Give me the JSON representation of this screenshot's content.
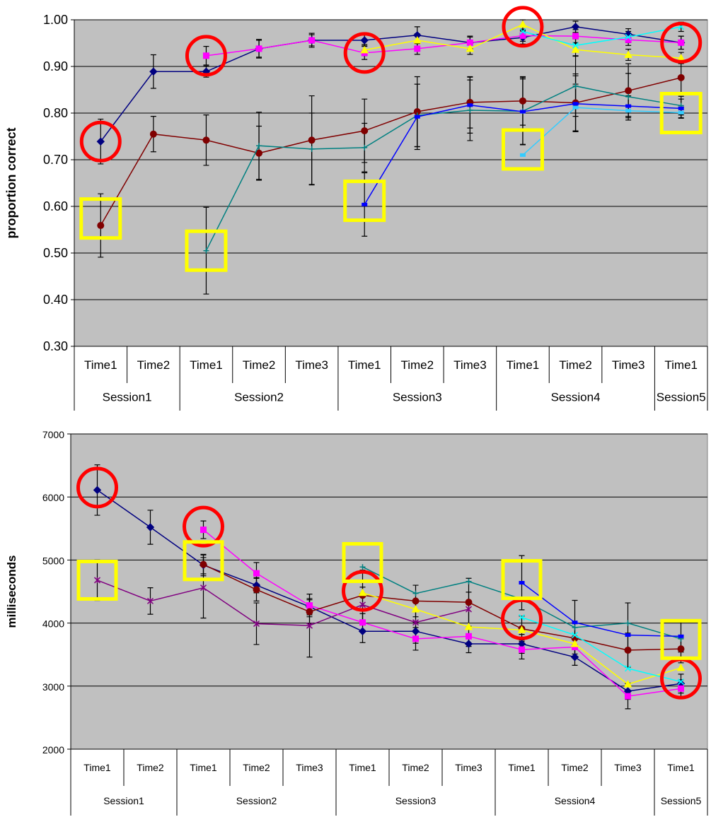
{
  "chart_data": [
    {
      "type": "line",
      "title": "",
      "xlabel": "",
      "ylabel": "proportion correct",
      "ylim": [
        0.3,
        1.0
      ],
      "yticks": [
        "0.30",
        "0.40",
        "0.50",
        "0.60",
        "0.70",
        "0.80",
        "0.90",
        "1.00"
      ],
      "grid": true,
      "legend": "none",
      "plot_bg": "#c0c0c0",
      "categories": [
        "Time1",
        "Time2",
        "Time1",
        "Time2",
        "Time3",
        "Time1",
        "Time2",
        "Time3",
        "Time1",
        "Time2",
        "Time3",
        "Time1"
      ],
      "groups": [
        {
          "label": "Session1",
          "span": 2
        },
        {
          "label": "Session2",
          "span": 3
        },
        {
          "label": "Session3",
          "span": 3
        },
        {
          "label": "Session4",
          "span": 3
        },
        {
          "label": "Session5",
          "span": 1
        }
      ],
      "series": [
        {
          "color": "#000080",
          "marker": "diamond",
          "values": [
            0.739,
            0.889,
            0.889,
            0.938,
            0.956,
            0.956,
            0.967,
            0.951,
            0.962,
            0.985,
            0.969,
            0.951
          ],
          "error": [
            0.048,
            0.036,
            0.012,
            0.018,
            0.015,
            0.012,
            0.018,
            0.012,
            0.014,
            0.012,
            0.012,
            0.014
          ]
        },
        {
          "color": "#800000",
          "marker": "circle",
          "values": [
            0.559,
            0.755,
            0.742,
            0.714,
            0.742,
            0.762,
            0.803,
            0.823,
            0.826,
            0.822,
            0.848,
            0.876
          ],
          "error": [
            0.068,
            0.038,
            0.054,
            0.058,
            0.095,
            0.068,
            0.075,
            0.055,
            0.052,
            0.062,
            0.058,
            0.035
          ]
        },
        {
          "color": "#008080",
          "marker": "plus",
          "values": [
            null,
            null,
            0.505,
            0.73,
            0.723,
            0.726,
            0.795,
            0.806,
            0.804,
            0.858,
            0.835,
            0.816
          ],
          "error": [
            0,
            0,
            0.093,
            0.072,
            0.077,
            0.052,
            0.067,
            0.065,
            0.072,
            0.065,
            0.05,
            0.02
          ]
        },
        {
          "color": "#ff00ff",
          "marker": "square",
          "values": [
            null,
            null,
            0.923,
            0.938,
            0.956,
            0.929,
            0.938,
            0.951,
            0.966,
            0.965,
            0.957,
            0.951
          ],
          "error": [
            0,
            0,
            0.02,
            0.02,
            0.012,
            0.014,
            0.012,
            0.014,
            0.012,
            0.014,
            0.012,
            0.014
          ]
        },
        {
          "color": "#0000ff",
          "marker": "dash",
          "values": [
            null,
            null,
            null,
            null,
            null,
            0.604,
            0.792,
            0.817,
            0.803,
            0.82,
            0.815,
            0.81
          ],
          "error": [
            0,
            0,
            0,
            0,
            0,
            0.068,
            0.07,
            0.06,
            0.07,
            0.06,
            0.022,
            0.02
          ]
        },
        {
          "color": "#ffff00",
          "marker": "triangle",
          "values": [
            null,
            null,
            null,
            null,
            null,
            0.935,
            0.956,
            0.938,
            0.99,
            0.936,
            0.925,
            0.918
          ],
          "error": [
            0,
            0,
            0,
            0,
            0,
            0.012,
            0.014,
            0.012,
            0.01,
            0.014,
            0.012,
            0.012
          ]
        },
        {
          "color": "#33ccff",
          "marker": "dash",
          "values": [
            null,
            null,
            null,
            null,
            null,
            null,
            null,
            null,
            0.71,
            0.812,
            0.805,
            0.801
          ],
          "error": [
            0,
            0,
            0,
            0,
            0,
            0,
            0,
            0,
            0,
            0.05,
            0.012,
            0.012
          ]
        },
        {
          "color": "#00ffff",
          "marker": "cross",
          "values": [
            null,
            null,
            null,
            null,
            null,
            null,
            null,
            null,
            0.975,
            0.945,
            0.963,
            0.985
          ],
          "error": [
            0,
            0,
            0,
            0,
            0,
            0,
            0,
            0,
            0.012,
            0.014,
            0.012,
            0.01
          ]
        }
      ],
      "annotations": [
        {
          "shape": "circle",
          "color": "#ff0000",
          "cat": 0,
          "value": 0.739
        },
        {
          "shape": "circle",
          "color": "#ff0000",
          "cat": 2,
          "value": 0.923
        },
        {
          "shape": "circle",
          "color": "#ff0000",
          "cat": 5,
          "value": 0.929
        },
        {
          "shape": "circle",
          "color": "#ff0000",
          "cat": 8,
          "value": 0.985
        },
        {
          "shape": "circle",
          "color": "#ff0000",
          "cat": 11,
          "value": 0.951
        },
        {
          "shape": "square",
          "color": "#ffff00",
          "cat": 0,
          "value": 0.574
        },
        {
          "shape": "square",
          "color": "#ffff00",
          "cat": 2,
          "value": 0.505
        },
        {
          "shape": "square",
          "color": "#ffff00",
          "cat": 5,
          "value": 0.612
        },
        {
          "shape": "square",
          "color": "#ffff00",
          "cat": 8,
          "value": 0.722
        },
        {
          "shape": "square",
          "color": "#ffff00",
          "cat": 11,
          "value": 0.8
        }
      ]
    },
    {
      "type": "line",
      "title": "",
      "xlabel": "",
      "ylabel": "milliseconds",
      "ylim": [
        2000,
        7000
      ],
      "yticks": [
        "2000",
        "3000",
        "4000",
        "5000",
        "6000",
        "7000"
      ],
      "grid": true,
      "legend": "none",
      "plot_bg": "#c0c0c0",
      "categories": [
        "Time1",
        "Time2",
        "Time1",
        "Time2",
        "Time3",
        "Time1",
        "Time2",
        "Time3",
        "Time1",
        "Time2",
        "Time3",
        "Time1"
      ],
      "groups": [
        {
          "label": "Session1",
          "span": 2
        },
        {
          "label": "Session2",
          "span": 3
        },
        {
          "label": "Session3",
          "span": 3
        },
        {
          "label": "Session4",
          "span": 3
        },
        {
          "label": "Session5",
          "span": 1
        }
      ],
      "series": [
        {
          "color": "#000080",
          "marker": "diamond",
          "values": [
            6110,
            5520,
            4920,
            4600,
            4260,
            3870,
            3870,
            3670,
            3670,
            3460,
            2920,
            3040
          ],
          "error": [
            400,
            270,
            170,
            120,
            130,
            180,
            140,
            140,
            150,
            130,
            130,
            150
          ]
        },
        {
          "color": "#800080",
          "marker": "asterisk",
          "values": [
            4680,
            4350,
            4560,
            3990,
            3960,
            4290,
            4010,
            4220,
            null,
            null,
            null,
            null
          ],
          "error": [
            320,
            210,
            480,
            330,
            500,
            280,
            330,
            270,
            0,
            0,
            0,
            0
          ]
        },
        {
          "color": "#ff00ff",
          "marker": "square",
          "values": [
            null,
            null,
            5480,
            4790,
            4280,
            4010,
            3750,
            3790,
            3580,
            3620,
            2840,
            2960
          ],
          "error": [
            0,
            0,
            140,
            170,
            180,
            140,
            180,
            160,
            150,
            170,
            200,
            140
          ]
        },
        {
          "color": "#800000",
          "marker": "circle",
          "values": [
            null,
            null,
            4930,
            4530,
            4180,
            4440,
            4350,
            4330,
            3910,
            3760,
            3570,
            3590
          ],
          "error": [
            0,
            0,
            150,
            180,
            190,
            400,
            250,
            380,
            200,
            250,
            270,
            220
          ]
        },
        {
          "color": "#008080",
          "marker": "plus",
          "values": [
            null,
            null,
            null,
            null,
            null,
            4890,
            4470,
            4660,
            4380,
            3930,
            4000,
            3750
          ]
        },
        {
          "color": "#ffff00",
          "marker": "triangle",
          "values": [
            null,
            null,
            null,
            null,
            null,
            4480,
            4220,
            3940,
            3890,
            3670,
            3030,
            3290
          ]
        },
        {
          "color": "#0000ff",
          "marker": "dash",
          "values": [
            null,
            null,
            null,
            null,
            null,
            null,
            null,
            null,
            4640,
            4010,
            3810,
            3790
          ],
          "error": [
            0,
            0,
            0,
            0,
            0,
            0,
            0,
            0,
            430,
            350,
            510,
            250
          ]
        },
        {
          "color": "#00ffff",
          "marker": "cross",
          "values": [
            null,
            null,
            null,
            null,
            null,
            null,
            null,
            null,
            4090,
            3810,
            3280,
            3070
          ]
        }
      ],
      "annotations": [
        {
          "shape": "circle",
          "color": "#ff0000",
          "cat": 0,
          "value": 6150
        },
        {
          "shape": "circle",
          "color": "#ff0000",
          "cat": 2,
          "value": 5530
        },
        {
          "shape": "circle",
          "color": "#ff0000",
          "cat": 5,
          "value": 4510
        },
        {
          "shape": "circle",
          "color": "#ff0000",
          "cat": 8,
          "value": 4060
        },
        {
          "shape": "circle",
          "color": "#ff0000",
          "cat": 11,
          "value": 3120
        },
        {
          "shape": "square",
          "color": "#ffff00",
          "cat": 0,
          "value": 4680
        },
        {
          "shape": "square",
          "color": "#ffff00",
          "cat": 2,
          "value": 4990
        },
        {
          "shape": "square",
          "color": "#ffff00",
          "cat": 5,
          "value": 4960
        },
        {
          "shape": "square",
          "color": "#ffff00",
          "cat": 8,
          "value": 4690
        },
        {
          "shape": "square",
          "color": "#ffff00",
          "cat": 11,
          "value": 3740
        }
      ]
    }
  ]
}
